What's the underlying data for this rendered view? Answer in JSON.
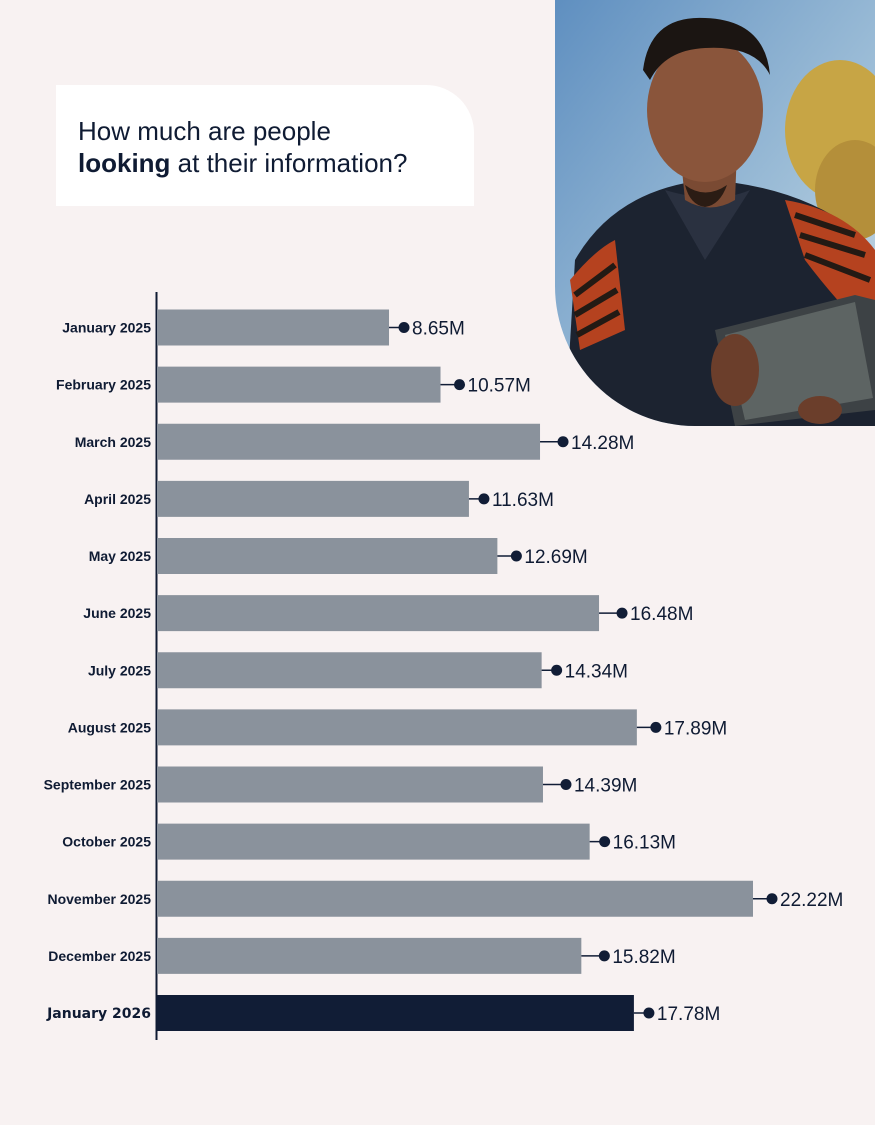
{
  "title": {
    "line1": "How much are people",
    "emphasis": "looking",
    "rest": "at their information?"
  },
  "colors": {
    "background": "#f8f2f2",
    "bar": "#8a929c",
    "bar_highlight": "#111d36",
    "marker": "#111d36",
    "text": "#0f1b33"
  },
  "chart_data": {
    "type": "bar",
    "orientation": "horizontal",
    "title": "How much are people looking at their information?",
    "categories": [
      "January 2025",
      "February 2025",
      "March 2025",
      "April 2025",
      "May 2025",
      "June 2025",
      "July 2025",
      "August 2025",
      "September 2025",
      "October 2025",
      "November 2025",
      "December 2025",
      "January 2026"
    ],
    "values": [
      8.65,
      10.57,
      14.28,
      11.63,
      12.69,
      16.48,
      14.34,
      17.89,
      14.39,
      16.13,
      22.22,
      15.82,
      17.78
    ],
    "labels": [
      "8.65M",
      "10.57M",
      "14.28M",
      "11.63M",
      "12.69M",
      "16.48M",
      "14.34M",
      "17.89M",
      "14.39M",
      "16.13M",
      "22.22M",
      "15.82M",
      "17.78M"
    ],
    "highlight_index": 12,
    "unit": "M",
    "xlabel": "",
    "ylabel": "",
    "xlim": [
      0,
      24
    ],
    "grid": false,
    "legend": "none"
  },
  "photo": {
    "icon": "person-with-tablet-photo"
  }
}
